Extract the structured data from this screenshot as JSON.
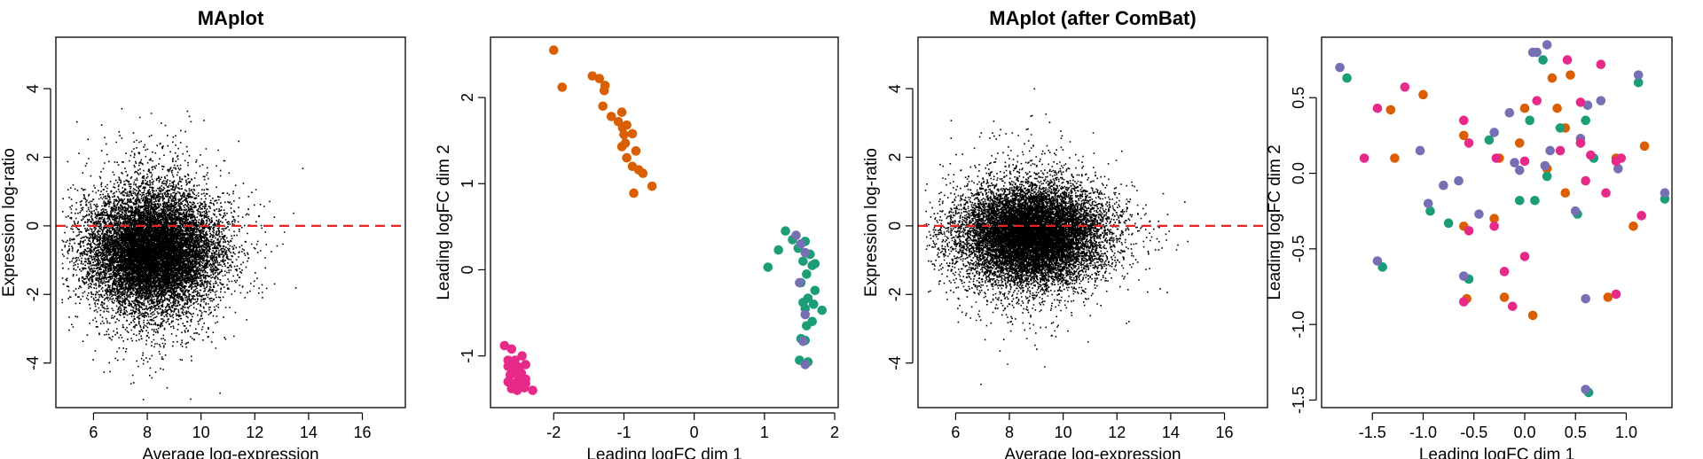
{
  "colors": {
    "ma_points": "#000000",
    "zero_line": "#ee2222",
    "orange": "#d95f02",
    "green": "#1b9e77",
    "purple": "#7570b3",
    "magenta": "#e7298a"
  },
  "chart_data": [
    {
      "type": "scatter",
      "title": "MAplot",
      "xlabel": "Average log-expression",
      "ylabel": "Expression log-ratio",
      "xlim": [
        4.6,
        17.6
      ],
      "ylim": [
        -5.3,
        5.5
      ],
      "xticks": [
        6,
        8,
        10,
        12,
        14,
        16
      ],
      "xtick_labels": [
        "6",
        "8",
        "10",
        "12",
        "14",
        "16"
      ],
      "yticks": [
        -4,
        -2,
        0,
        2,
        4
      ],
      "ytick_labels": [
        "-4",
        "-2",
        "0",
        "2",
        "4"
      ],
      "reference_line": {
        "y": 0,
        "style": "dashed",
        "color": "red"
      },
      "point_cloud": {
        "description_of_distribution": "dense cloud of about 14000 genes",
        "n_points": 14000,
        "x_center": 8.2,
        "x_spread": 1.15,
        "y_center": -0.7,
        "y_spread": 0.85,
        "x_range": [
          4.8,
          14.2
        ],
        "y_range": [
          -5.1,
          3.5
        ]
      },
      "grid": false
    },
    {
      "type": "scatter",
      "title": "",
      "xlabel": "Leading logFC dim 1",
      "ylabel": "Leading logFC dim 2",
      "xlim": [
        -2.9,
        2.05
      ],
      "ylim": [
        -1.6,
        2.7
      ],
      "xticks": [
        -2,
        -1,
        0,
        1,
        2
      ],
      "xtick_labels": [
        "-2",
        "-1",
        "0",
        "1",
        "2"
      ],
      "yticks": [
        -1,
        0,
        1,
        2
      ],
      "ytick_labels": [
        "-1",
        "0",
        "1",
        "2"
      ],
      "series": [
        {
          "color": "orange",
          "points": [
            [
              -2.0,
              2.55
            ],
            [
              -1.88,
              2.12
            ],
            [
              -1.45,
              2.25
            ],
            [
              -1.35,
              2.22
            ],
            [
              -1.28,
              2.08
            ],
            [
              -1.27,
              2.14
            ],
            [
              -1.3,
              1.9
            ],
            [
              -1.18,
              1.78
            ],
            [
              -1.08,
              1.72
            ],
            [
              -1.03,
              1.83
            ],
            [
              -1.02,
              1.65
            ],
            [
              -1.0,
              1.57
            ],
            [
              -0.96,
              1.68
            ],
            [
              -1.03,
              1.43
            ],
            [
              -0.98,
              1.47
            ],
            [
              -0.96,
              1.3
            ],
            [
              -0.88,
              1.58
            ],
            [
              -0.83,
              1.38
            ],
            [
              -0.79,
              1.16
            ],
            [
              -0.88,
              1.2
            ],
            [
              -0.73,
              1.12
            ],
            [
              -0.86,
              0.89
            ],
            [
              -0.6,
              0.97
            ]
          ]
        },
        {
          "color": "green",
          "points": [
            [
              1.05,
              0.03
            ],
            [
              1.2,
              0.23
            ],
            [
              1.3,
              0.45
            ],
            [
              1.4,
              0.35
            ],
            [
              1.48,
              0.25
            ],
            [
              1.55,
              0.1
            ],
            [
              1.58,
              0.33
            ],
            [
              1.65,
              0.18
            ],
            [
              1.72,
              0.07
            ],
            [
              1.68,
              0.05
            ],
            [
              1.6,
              -0.05
            ],
            [
              1.52,
              -0.15
            ],
            [
              1.72,
              -0.24
            ],
            [
              1.62,
              -0.33
            ],
            [
              1.55,
              -0.38
            ],
            [
              1.7,
              -0.4
            ],
            [
              1.82,
              -0.47
            ],
            [
              1.58,
              -0.45
            ],
            [
              1.68,
              -0.6
            ],
            [
              1.6,
              -0.65
            ],
            [
              1.52,
              -0.8
            ],
            [
              1.58,
              -0.82
            ],
            [
              1.5,
              -1.05
            ],
            [
              1.62,
              -1.07
            ]
          ]
        },
        {
          "color": "purple",
          "points": [
            [
              1.45,
              0.4
            ],
            [
              1.52,
              0.3
            ],
            [
              1.58,
              0.2
            ],
            [
              1.5,
              -0.15
            ],
            [
              1.58,
              -0.52
            ],
            [
              1.55,
              -0.83
            ],
            [
              1.58,
              -1.1
            ]
          ]
        },
        {
          "color": "magenta",
          "points": [
            [
              -2.7,
              -0.88
            ],
            [
              -2.6,
              -0.92
            ],
            [
              -2.65,
              -1.05
            ],
            [
              -2.55,
              -1.05
            ],
            [
              -2.45,
              -1.0
            ],
            [
              -2.65,
              -1.12
            ],
            [
              -2.55,
              -1.13
            ],
            [
              -2.5,
              -1.13
            ],
            [
              -2.4,
              -1.1
            ],
            [
              -2.55,
              -1.18
            ],
            [
              -2.46,
              -1.2
            ],
            [
              -2.62,
              -1.22
            ],
            [
              -2.5,
              -1.25
            ],
            [
              -2.4,
              -1.27
            ],
            [
              -2.65,
              -1.3
            ],
            [
              -2.58,
              -1.32
            ],
            [
              -2.48,
              -1.33
            ],
            [
              -2.55,
              -1.35
            ],
            [
              -2.4,
              -1.32
            ],
            [
              -2.6,
              -1.38
            ],
            [
              -2.52,
              -1.4
            ],
            [
              -2.42,
              -1.37
            ],
            [
              -2.3,
              -1.4
            ]
          ]
        }
      ],
      "grid": false
    },
    {
      "type": "scatter",
      "title": "MAplot (after ComBat)",
      "xlabel": "Average log-expression",
      "ylabel": "Expression log-ratio",
      "xlim": [
        4.6,
        17.6
      ],
      "ylim": [
        -5.3,
        5.5
      ],
      "xticks": [
        6,
        8,
        10,
        12,
        14,
        16
      ],
      "xtick_labels": [
        "6",
        "8",
        "10",
        "12",
        "14",
        "16"
      ],
      "yticks": [
        -4,
        -2,
        0,
        2,
        4
      ],
      "ytick_labels": [
        "-4",
        "-2",
        "0",
        "2",
        "4"
      ],
      "reference_line": {
        "y": 0,
        "style": "dashed",
        "color": "red"
      },
      "point_cloud": {
        "description_of_distribution": "dense cloud of about 14000 genes",
        "n_points": 14000,
        "x_center": 8.8,
        "x_spread": 1.25,
        "y_center": -0.25,
        "y_spread": 0.68,
        "x_range": [
          4.8,
          14.8
        ],
        "y_range": [
          -4.8,
          5.0
        ]
      },
      "grid": false
    },
    {
      "type": "scatter",
      "title": "",
      "xlabel": "Leading logFC dim 1",
      "ylabel": "Leading logFC dim 2",
      "xlim": [
        -2.0,
        1.45
      ],
      "ylim": [
        -1.55,
        0.9
      ],
      "xticks": [
        -1.5,
        -1.0,
        -0.5,
        0.0,
        0.5,
        1.0
      ],
      "xtick_labels": [
        "-1.5",
        "-1.0",
        "-0.5",
        "0.0",
        "0.5",
        "1.0"
      ],
      "yticks": [
        -1.5,
        -1.0,
        -0.5,
        0.0,
        0.5
      ],
      "ytick_labels": [
        "-1.5",
        "-1.0",
        "-0.5",
        "0.0",
        "0.5"
      ],
      "series": [
        {
          "color": "orange",
          "points": [
            [
              -1.32,
              0.42
            ],
            [
              -1.0,
              0.52
            ],
            [
              -1.28,
              0.1
            ],
            [
              -0.6,
              0.25
            ],
            [
              -0.25,
              0.1
            ],
            [
              0.0,
              0.43
            ],
            [
              0.27,
              0.63
            ],
            [
              0.45,
              0.65
            ],
            [
              0.32,
              0.43
            ],
            [
              0.55,
              0.2
            ],
            [
              0.22,
              0.03
            ],
            [
              -0.6,
              -0.35
            ],
            [
              -0.3,
              -0.3
            ],
            [
              0.4,
              -0.13
            ],
            [
              0.9,
              0.1
            ],
            [
              1.18,
              0.18
            ],
            [
              1.07,
              -0.35
            ],
            [
              -0.57,
              -0.83
            ],
            [
              -0.2,
              -0.82
            ],
            [
              0.08,
              -0.94
            ],
            [
              0.82,
              -0.82
            ],
            [
              0.4,
              0.3
            ],
            [
              -0.05,
              0.2
            ]
          ]
        },
        {
          "color": "green",
          "points": [
            [
              -1.75,
              0.63
            ],
            [
              -0.93,
              -0.25
            ],
            [
              -0.75,
              -0.33
            ],
            [
              -1.4,
              -0.62
            ],
            [
              -0.35,
              0.22
            ],
            [
              0.05,
              0.35
            ],
            [
              0.18,
              0.75
            ],
            [
              0.35,
              0.3
            ],
            [
              0.68,
              0.1
            ],
            [
              0.6,
              0.35
            ],
            [
              0.22,
              -0.02
            ],
            [
              0.1,
              -0.18
            ],
            [
              0.52,
              -0.27
            ],
            [
              1.12,
              0.6
            ],
            [
              1.38,
              -0.17
            ],
            [
              -0.55,
              -0.7
            ],
            [
              0.63,
              -1.45
            ],
            [
              -0.05,
              -0.18
            ]
          ]
        },
        {
          "color": "purple",
          "points": [
            [
              -1.82,
              0.7
            ],
            [
              -1.03,
              0.15
            ],
            [
              -0.95,
              -0.2
            ],
            [
              -0.8,
              -0.08
            ],
            [
              -0.65,
              -0.05
            ],
            [
              -0.45,
              -0.27
            ],
            [
              -0.3,
              0.27
            ],
            [
              -0.1,
              0.07
            ],
            [
              -0.05,
              0.02
            ],
            [
              0.08,
              0.8
            ],
            [
              0.12,
              0.8
            ],
            [
              0.22,
              0.85
            ],
            [
              0.25,
              0.15
            ],
            [
              0.2,
              0.05
            ],
            [
              0.5,
              -0.25
            ],
            [
              0.62,
              0.45
            ],
            [
              0.75,
              0.48
            ],
            [
              0.92,
              0.03
            ],
            [
              1.12,
              0.65
            ],
            [
              1.38,
              -0.13
            ],
            [
              -1.45,
              -0.58
            ],
            [
              -0.6,
              -0.68
            ],
            [
              0.6,
              -0.83
            ],
            [
              0.6,
              -1.43
            ],
            [
              0.55,
              0.23
            ],
            [
              -0.15,
              0.4
            ]
          ]
        },
        {
          "color": "magenta",
          "points": [
            [
              -1.58,
              0.1
            ],
            [
              -1.45,
              0.43
            ],
            [
              -1.18,
              0.57
            ],
            [
              -0.6,
              0.35
            ],
            [
              -0.55,
              0.2
            ],
            [
              -0.28,
              0.1
            ],
            [
              -0.55,
              -0.38
            ],
            [
              -0.3,
              -0.35
            ],
            [
              0.0,
              0.08
            ],
            [
              0.12,
              0.48
            ],
            [
              0.42,
              0.75
            ],
            [
              0.75,
              0.72
            ],
            [
              0.55,
              0.2
            ],
            [
              0.65,
              0.12
            ],
            [
              0.8,
              -0.13
            ],
            [
              0.95,
              0.1
            ],
            [
              1.15,
              -0.28
            ],
            [
              -0.2,
              -0.65
            ],
            [
              -0.12,
              -0.88
            ],
            [
              0.0,
              -0.55
            ],
            [
              0.9,
              -0.8
            ],
            [
              0.35,
              0.15
            ],
            [
              -0.6,
              -0.85
            ],
            [
              0.6,
              -0.05
            ],
            [
              0.55,
              0.47
            ],
            [
              0.9,
              0.08
            ]
          ]
        }
      ],
      "grid": false
    }
  ]
}
